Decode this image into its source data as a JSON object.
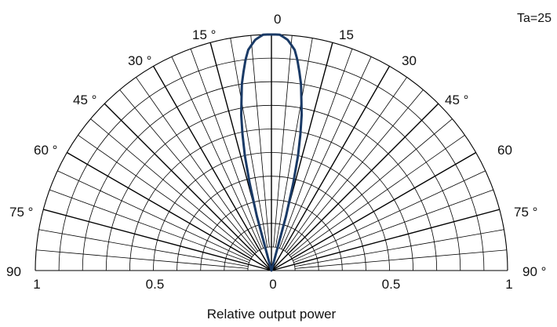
{
  "annotation": "Ta=25",
  "chart_data": {
    "type": "polar",
    "title": "",
    "xlabel": "Relative output power",
    "angle_unit": "degrees",
    "angle_range": [
      -90,
      90
    ],
    "radial_range": [
      0,
      1
    ],
    "grid": true,
    "angle_ticks_left": [
      "0",
      "15 °",
      "30 °",
      "45 °",
      "60 °",
      "75 °",
      "90"
    ],
    "angle_ticks_right": [
      "15",
      "30",
      "45 °",
      "60",
      "75 °",
      "90 °"
    ],
    "radial_ticks": [
      "1",
      "0.5",
      "0",
      "0.5",
      "1"
    ],
    "series": [
      {
        "color": "#1a3a66",
        "angles": [
          -16,
          -15,
          -14,
          -13,
          -12,
          -11,
          -10,
          -9,
          -8,
          -7,
          -6,
          -5,
          -4,
          -3,
          -2,
          -1,
          0,
          1,
          2,
          3,
          4,
          5,
          6,
          7,
          8,
          9,
          10,
          11,
          12,
          13,
          14,
          15,
          16
        ],
        "values": [
          0,
          0.24,
          0.38,
          0.5,
          0.59,
          0.67,
          0.73,
          0.8,
          0.85,
          0.9,
          0.94,
          0.96,
          0.98,
          0.99,
          1,
          1,
          1,
          1,
          1,
          0.99,
          0.98,
          0.96,
          0.94,
          0.9,
          0.85,
          0.8,
          0.73,
          0.67,
          0.59,
          0.5,
          0.38,
          0.24,
          0
        ]
      }
    ]
  }
}
